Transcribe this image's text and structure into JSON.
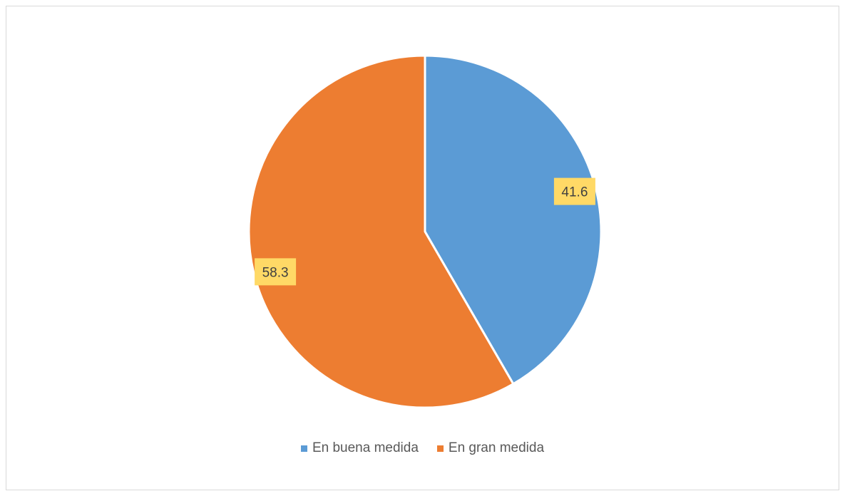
{
  "chart_data": {
    "type": "pie",
    "title": "",
    "categories": [
      "En buena medida",
      "En gran medida"
    ],
    "values": [
      41.6,
      58.3
    ],
    "data_labels": [
      "41.6",
      "58.3"
    ],
    "colors": [
      "#5b9bd5",
      "#ed7d31"
    ],
    "data_label_background": "#ffd966",
    "legend_position": "bottom",
    "start_angle": "12 o'clock",
    "direction": "clockwise"
  }
}
